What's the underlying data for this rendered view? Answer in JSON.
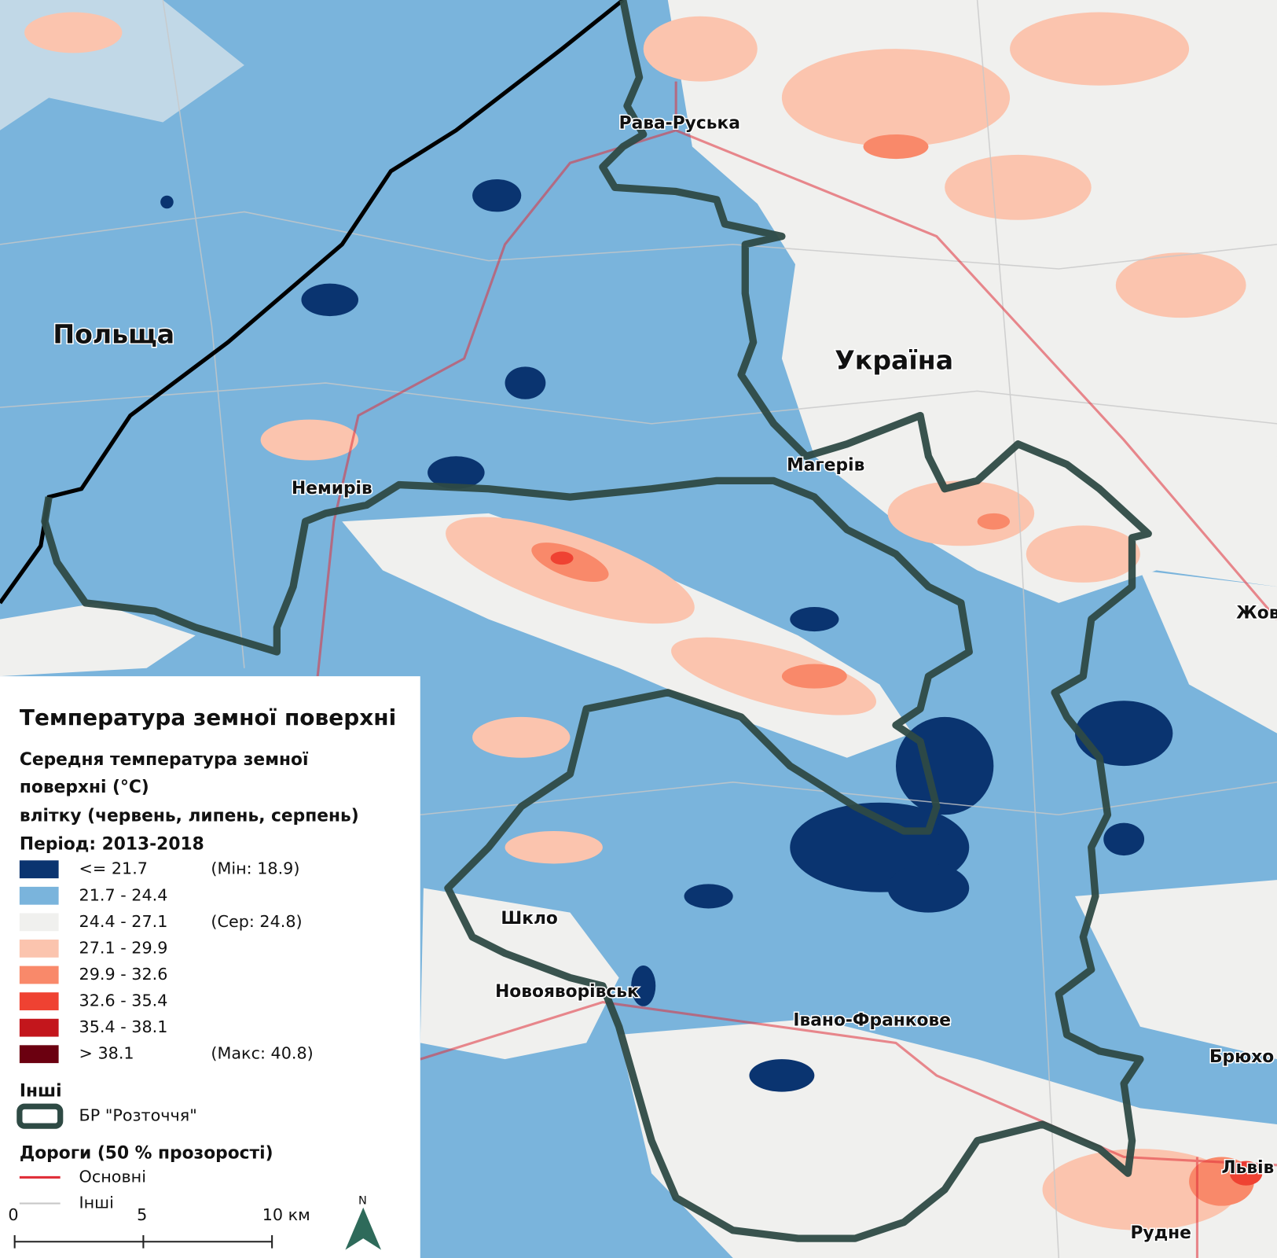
{
  "map": {
    "places": [
      "Польща",
      "Україна",
      "Рава-Руська",
      "Немирів",
      "Магерів",
      "Шкло",
      "Новояворівськ",
      "Івано-Франкове",
      "Жов",
      "Брюхо",
      "Львів",
      "Рудне"
    ],
    "legend": {
      "title": "Температура земної поверхні",
      "subtitle": [
        "Середня температура земної",
        "поверхні (°C)",
        "влітку (червень, липень, серпень)",
        "Період: 2013-2018"
      ],
      "classes": [
        {
          "range": "<= 21.7",
          "note": "(Мін: 18.9)",
          "color": "#0a3470"
        },
        {
          "range": "21.7 - 24.4",
          "color": "#7ab4dc"
        },
        {
          "range": "24.4 - 27.1",
          "note": "(Сер: 24.8)",
          "color": "#f0f0ee"
        },
        {
          "range": "27.1 - 29.9",
          "color": "#fbc4ae"
        },
        {
          "range": "29.9 - 32.6",
          "color": "#f9896a"
        },
        {
          "range": "32.6 - 35.4",
          "color": "#ef4232"
        },
        {
          "range": "35.4 - 38.1",
          "color": "#c3161c"
        },
        {
          "range": "> 38.1",
          "note": "(Макс: 40.8)",
          "color": "#6b0010"
        }
      ],
      "other_title": "Інші",
      "reserve": "БР \"Розточчя\"",
      "roads_title": "Дороги (50 % прозорості)",
      "roads": [
        "Основні",
        "Інші"
      ],
      "scale": [
        "0",
        "5",
        "10 км"
      ],
      "north": "N"
    }
  }
}
